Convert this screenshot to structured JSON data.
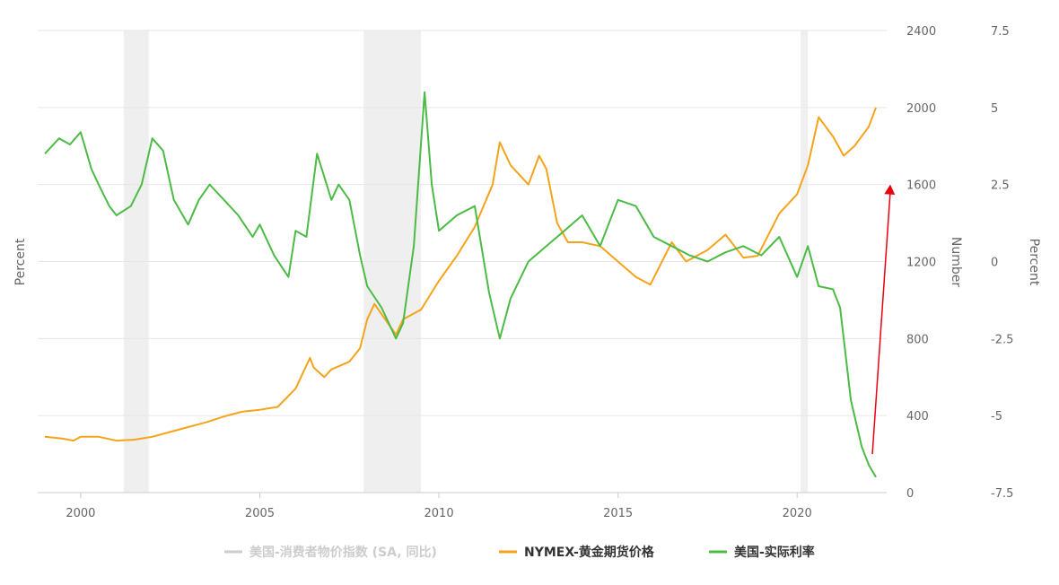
{
  "chart_data": {
    "type": "line",
    "xlabel": "",
    "xlim": [
      1998.8,
      2022.5
    ],
    "x_ticks": [
      2000,
      2005,
      2010,
      2015,
      2020
    ],
    "axes": {
      "left": {
        "label": "Percent"
      },
      "middle": {
        "label": "Number",
        "ylim": [
          0,
          2400
        ],
        "ticks": [
          0,
          400,
          800,
          1200,
          1600,
          2000,
          2400
        ]
      },
      "right": {
        "label": "Percent",
        "ylim": [
          -7.5,
          7.5
        ],
        "ticks": [
          -7.5,
          -5,
          -2.5,
          0,
          2.5,
          5,
          7.5
        ]
      }
    },
    "recessions": [
      [
        2001.2,
        2001.9
      ],
      [
        2007.9,
        2009.5
      ],
      [
        2020.1,
        2020.3
      ]
    ],
    "grid": true,
    "legend_position": "bottom",
    "legend": [
      {
        "label": "美国-消费者物价指数 (SA, 同比)",
        "color": "#cccccc",
        "active": false
      },
      {
        "label": "NYMEX-黄金期货价格",
        "color": "#f5a31a",
        "active": true
      },
      {
        "label": "美国-实际利率",
        "color": "#4cbb45",
        "active": true
      }
    ],
    "series": [
      {
        "name": "NYMEX-黄金期货价格",
        "axis": "middle",
        "color": "#f5a31a",
        "x": [
          1999.0,
          1999.5,
          1999.8,
          2000.0,
          2000.5,
          2001.0,
          2001.5,
          2002.0,
          2002.5,
          2003.0,
          2003.5,
          2004.0,
          2004.5,
          2005.0,
          2005.5,
          2006.0,
          2006.4,
          2006.5,
          2006.8,
          2007.0,
          2007.5,
          2007.8,
          2008.0,
          2008.2,
          2008.5,
          2008.8,
          2009.0,
          2009.5,
          2010.0,
          2010.5,
          2011.0,
          2011.5,
          2011.7,
          2012.0,
          2012.5,
          2012.8,
          2013.0,
          2013.3,
          2013.6,
          2014.0,
          2014.5,
          2015.0,
          2015.5,
          2015.9,
          2016.5,
          2016.9,
          2017.5,
          2018.0,
          2018.5,
          2018.9,
          2019.5,
          2020.0,
          2020.3,
          2020.6,
          2020.8,
          2021.0,
          2021.3,
          2021.6,
          2022.0,
          2022.2
        ],
        "y": [
          290,
          280,
          270,
          290,
          290,
          270,
          275,
          290,
          315,
          340,
          365,
          395,
          420,
          430,
          445,
          540,
          700,
          650,
          600,
          640,
          680,
          750,
          900,
          980,
          900,
          820,
          900,
          950,
          1100,
          1230,
          1380,
          1600,
          1820,
          1700,
          1600,
          1750,
          1680,
          1400,
          1300,
          1300,
          1280,
          1200,
          1120,
          1080,
          1300,
          1200,
          1260,
          1340,
          1220,
          1230,
          1450,
          1550,
          1700,
          1950,
          1900,
          1850,
          1750,
          1800,
          1900,
          2000
        ]
      },
      {
        "name": "美国-实际利率",
        "axis": "right",
        "color": "#4cbb45",
        "x": [
          1999.0,
          1999.4,
          1999.7,
          2000.0,
          2000.3,
          2000.5,
          2000.8,
          2001.0,
          2001.4,
          2001.7,
          2002.0,
          2002.3,
          2002.6,
          2003.0,
          2003.3,
          2003.6,
          2004.0,
          2004.4,
          2004.8,
          2005.0,
          2005.4,
          2005.8,
          2006.0,
          2006.3,
          2006.6,
          2007.0,
          2007.2,
          2007.5,
          2007.8,
          2008.0,
          2008.4,
          2008.8,
          2009.0,
          2009.3,
          2009.6,
          2009.8,
          2010.0,
          2010.5,
          2011.0,
          2011.4,
          2011.7,
          2012.0,
          2012.5,
          2013.0,
          2013.5,
          2014.0,
          2014.5,
          2015.0,
          2015.5,
          2016.0,
          2016.5,
          2017.0,
          2017.5,
          2018.0,
          2018.5,
          2019.0,
          2019.5,
          2020.0,
          2020.3,
          2020.6,
          2021.0,
          2021.2,
          2021.5,
          2021.8,
          2022.0,
          2022.2
        ],
        "y": [
          3.5,
          4.0,
          3.8,
          4.2,
          3.0,
          2.5,
          1.8,
          1.5,
          1.8,
          2.5,
          4.0,
          3.6,
          2.0,
          1.2,
          2.0,
          2.5,
          2.0,
          1.5,
          0.8,
          1.2,
          0.2,
          -0.5,
          1.0,
          0.8,
          3.5,
          2.0,
          2.5,
          2.0,
          0.2,
          -0.8,
          -1.5,
          -2.5,
          -2.0,
          0.5,
          5.5,
          2.5,
          1.0,
          1.5,
          1.8,
          -1.0,
          -2.5,
          -1.2,
          0.0,
          0.5,
          1.0,
          1.5,
          0.5,
          2.0,
          1.8,
          0.8,
          0.5,
          0.2,
          0.0,
          0.3,
          0.5,
          0.2,
          0.8,
          -0.5,
          0.5,
          -0.8,
          -0.9,
          -1.5,
          -4.5,
          -6.0,
          -6.6,
          -7.0
        ]
      }
    ],
    "annotations": [
      {
        "type": "arrow",
        "color": "#e8000f",
        "from": {
          "x": 2022.1,
          "y": 200
        },
        "to": {
          "x": 2022.6,
          "y": 1600
        },
        "axis": "middle"
      }
    ]
  }
}
